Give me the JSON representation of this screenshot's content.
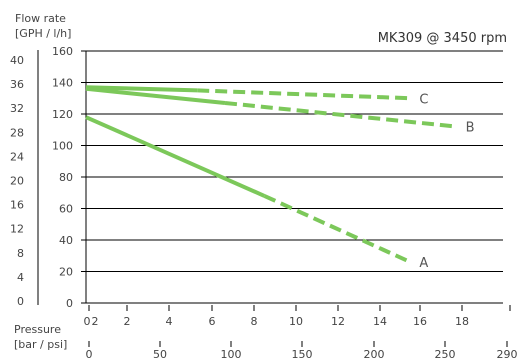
{
  "chart_data": {
    "type": "line",
    "title": "MK309 @ 3450 rpm",
    "ylabel": [
      "Flow rate",
      "[GPH / l/h]"
    ],
    "xlabel": [
      "Pressure",
      "[bar / psi]"
    ],
    "ylim": [
      0,
      160
    ],
    "xlim": [
      0,
      18
    ],
    "grid": true,
    "y_ticks_lph": [
      "0",
      "20",
      "40",
      "60",
      "80",
      "100",
      "120",
      "140",
      "160"
    ],
    "y_ticks_gph": [
      "0",
      "4",
      "8",
      "12",
      "16",
      "20",
      "24",
      "28",
      "32",
      "36",
      "40"
    ],
    "x_ticks_bar": [
      "0",
      "2",
      "2",
      "4",
      "6",
      "8",
      "10",
      "12",
      "14",
      "16",
      "18"
    ],
    "x_ticks_psi": [
      "0",
      "50",
      "100",
      "150",
      "200",
      "250",
      "290"
    ],
    "series": [
      {
        "name": "A",
        "color": "#7cc85a",
        "solid": {
          "x": [
            0,
            7.7
          ],
          "y": [
            118,
            68
          ]
        },
        "dashed": {
          "x": [
            7.7,
            14
          ],
          "y": [
            68,
            26
          ]
        }
      },
      {
        "name": "B",
        "color": "#7cc85a",
        "solid": {
          "x": [
            0,
            6
          ],
          "y": [
            136,
            127
          ]
        },
        "dashed": {
          "x": [
            6,
            16
          ],
          "y": [
            127,
            112
          ]
        }
      },
      {
        "name": "C",
        "color": "#7cc85a",
        "solid": {
          "x": [
            0,
            4.8
          ],
          "y": [
            137,
            135
          ]
        },
        "dashed": {
          "x": [
            4.8,
            14
          ],
          "y": [
            135,
            130
          ]
        }
      }
    ]
  }
}
